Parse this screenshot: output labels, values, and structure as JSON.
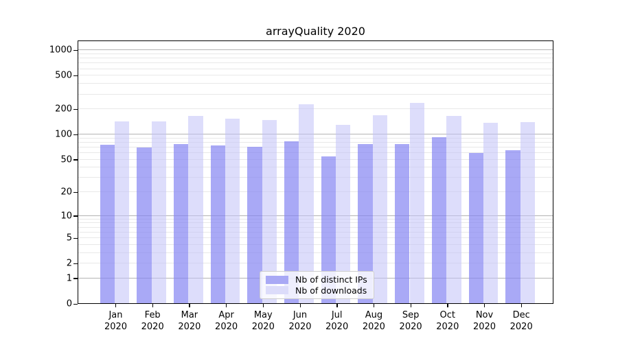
{
  "chart_data": {
    "type": "bar",
    "title": "arrayQuality 2020",
    "categories": [
      "Jan",
      "Feb",
      "Mar",
      "Apr",
      "May",
      "Jun",
      "Jul",
      "Aug",
      "Sep",
      "Oct",
      "Nov",
      "Dec"
    ],
    "x_year_label": "2020",
    "series": [
      {
        "name": "Nb of distinct IPs",
        "values": [
          74,
          69,
          75,
          72,
          70,
          81,
          54,
          75,
          76,
          91,
          59,
          64
        ],
        "bar_color": "rgba(133,133,242,0.70)",
        "swatch_color": "#a9a9f5"
      },
      {
        "name": "Nb of downloads",
        "values": [
          141,
          141,
          165,
          153,
          146,
          223,
          127,
          168,
          235,
          165,
          135,
          137
        ],
        "bar_color": "rgba(193,193,247,0.55)",
        "swatch_color": "#dcdcfa"
      }
    ],
    "y_ticks": [
      0,
      1,
      2,
      5,
      10,
      20,
      50,
      100,
      200,
      500,
      1000
    ],
    "y_minor_gridlines": [
      2,
      3,
      4,
      5,
      6,
      7,
      8,
      9,
      20,
      30,
      40,
      50,
      60,
      70,
      80,
      90,
      200,
      300,
      400,
      500,
      600,
      700,
      800,
      900
    ],
    "y_major_gridlines": [
      1,
      10,
      100,
      1000
    ],
    "y_scale": "log1p",
    "ylim": [
      0,
      1300
    ],
    "grid": true,
    "legend_position": "bottom-center",
    "colors": {
      "axis": "#000000",
      "major_grid": "#b3b3b3",
      "minor_grid": "#e8e8e8",
      "legend_border": "#cccccc"
    }
  }
}
